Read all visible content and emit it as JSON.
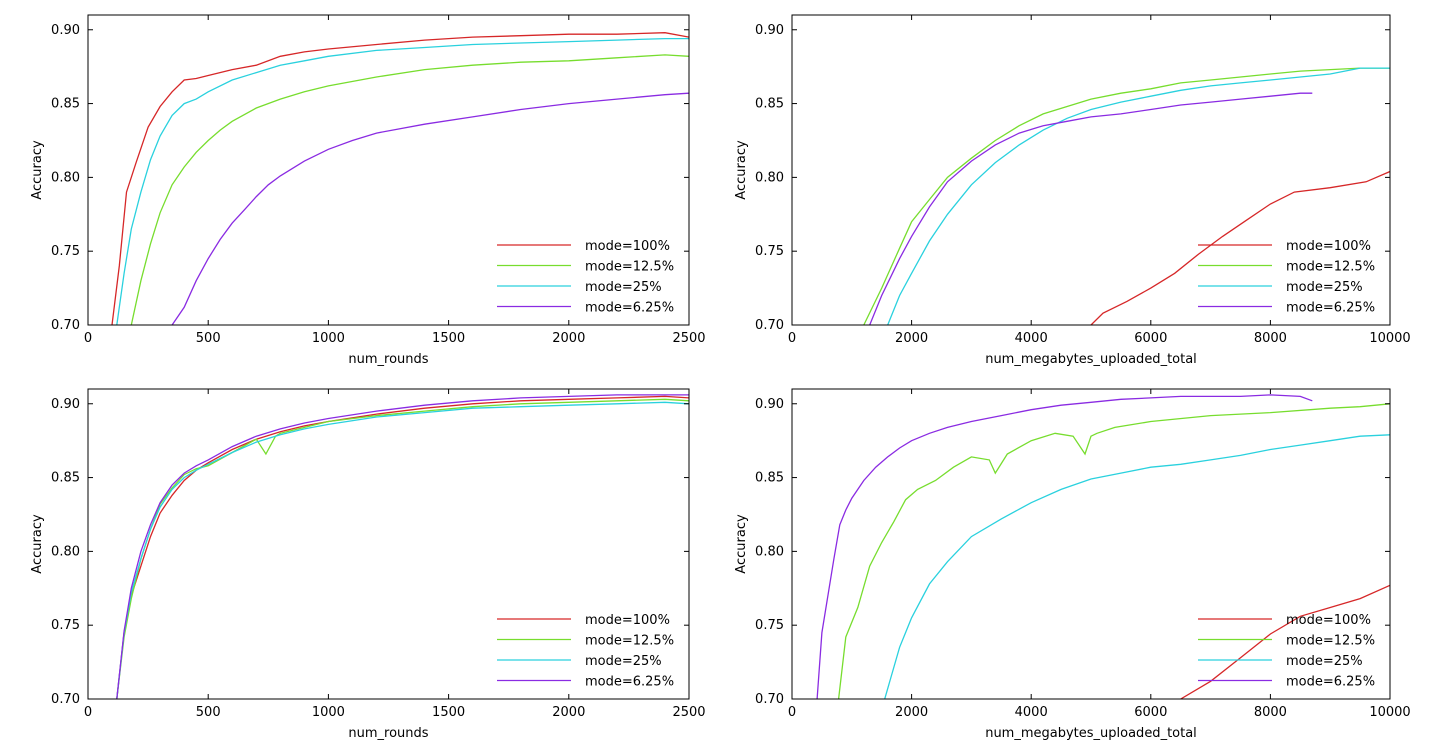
{
  "colors": {
    "mode=100%": "#d62728",
    "mode=12.5%": "#77dd2e",
    "mode=25%": "#2ad1de",
    "mode=6.25%": "#8a2be2"
  },
  "chart_data": [
    {
      "type": "line",
      "xlabel": "num_rounds",
      "ylabel": "Accuracy",
      "xlim": [
        0,
        2500
      ],
      "ylim": [
        0.7,
        0.91
      ],
      "xticks": [
        0,
        500,
        1000,
        1500,
        2000,
        2500
      ],
      "yticks": [
        0.7,
        0.75,
        0.8,
        0.85,
        0.9
      ],
      "legend": "lower-right",
      "grid": false,
      "series": [
        {
          "name": "mode=100%",
          "x": [
            100,
            130,
            160,
            200,
            250,
            300,
            350,
            400,
            450,
            500,
            600,
            700,
            800,
            900,
            1000,
            1200,
            1400,
            1600,
            1800,
            2000,
            2200,
            2400,
            2500
          ],
          "y": [
            0.7,
            0.74,
            0.79,
            0.81,
            0.834,
            0.848,
            0.858,
            0.866,
            0.867,
            0.869,
            0.873,
            0.876,
            0.882,
            0.885,
            0.887,
            0.89,
            0.893,
            0.895,
            0.896,
            0.897,
            0.897,
            0.898,
            0.895
          ]
        },
        {
          "name": "mode=12.5%",
          "x": [
            180,
            220,
            260,
            300,
            350,
            400,
            450,
            500,
            550,
            600,
            700,
            800,
            900,
            1000,
            1200,
            1400,
            1600,
            1800,
            2000,
            2200,
            2400,
            2500
          ],
          "y": [
            0.7,
            0.73,
            0.755,
            0.776,
            0.795,
            0.807,
            0.817,
            0.825,
            0.832,
            0.838,
            0.847,
            0.853,
            0.858,
            0.862,
            0.868,
            0.873,
            0.876,
            0.878,
            0.879,
            0.881,
            0.883,
            0.882
          ]
        },
        {
          "name": "mode=25%",
          "x": [
            120,
            150,
            180,
            220,
            260,
            300,
            350,
            400,
            450,
            500,
            600,
            700,
            800,
            900,
            1000,
            1200,
            1400,
            1600,
            1800,
            2000,
            2200,
            2400,
            2500
          ],
          "y": [
            0.7,
            0.735,
            0.765,
            0.79,
            0.812,
            0.828,
            0.842,
            0.85,
            0.853,
            0.858,
            0.866,
            0.871,
            0.876,
            0.879,
            0.882,
            0.886,
            0.888,
            0.89,
            0.891,
            0.892,
            0.893,
            0.894,
            0.894
          ]
        },
        {
          "name": "mode=6.25%",
          "x": [
            350,
            400,
            450,
            500,
            550,
            600,
            650,
            700,
            750,
            800,
            900,
            1000,
            1100,
            1200,
            1400,
            1600,
            1800,
            2000,
            2200,
            2400,
            2500
          ],
          "y": [
            0.7,
            0.712,
            0.73,
            0.745,
            0.758,
            0.769,
            0.778,
            0.787,
            0.795,
            0.801,
            0.811,
            0.819,
            0.825,
            0.83,
            0.836,
            0.841,
            0.846,
            0.85,
            0.853,
            0.856,
            0.857
          ]
        }
      ]
    },
    {
      "type": "line",
      "xlabel": "num_megabytes_uploaded_total",
      "ylabel": "Accuracy",
      "xlim": [
        0,
        10000
      ],
      "ylim": [
        0.7,
        0.91
      ],
      "xticks": [
        0,
        2000,
        4000,
        6000,
        8000,
        10000
      ],
      "yticks": [
        0.7,
        0.75,
        0.8,
        0.85,
        0.9
      ],
      "legend": "lower-right",
      "grid": false,
      "series": [
        {
          "name": "mode=100%",
          "x": [
            5000,
            5200,
            5600,
            6000,
            6400,
            6800,
            7200,
            7600,
            8000,
            8400,
            9000,
            9600,
            10000
          ],
          "y": [
            0.7,
            0.708,
            0.716,
            0.725,
            0.735,
            0.748,
            0.76,
            0.771,
            0.782,
            0.79,
            0.793,
            0.797,
            0.804
          ]
        },
        {
          "name": "mode=12.5%",
          "x": [
            1200,
            1500,
            1800,
            2000,
            2300,
            2600,
            3000,
            3400,
            3800,
            4200,
            4600,
            5000,
            5500,
            6000,
            6500,
            7000,
            7500,
            8000,
            8500,
            9000,
            9500,
            10000
          ],
          "y": [
            0.7,
            0.725,
            0.752,
            0.77,
            0.785,
            0.8,
            0.813,
            0.825,
            0.835,
            0.843,
            0.848,
            0.853,
            0.857,
            0.86,
            0.864,
            0.866,
            0.868,
            0.87,
            0.872,
            0.873,
            0.874,
            0.874
          ]
        },
        {
          "name": "mode=25%",
          "x": [
            1600,
            1800,
            2000,
            2300,
            2600,
            3000,
            3400,
            3800,
            4200,
            4600,
            5000,
            5500,
            6000,
            6500,
            7000,
            7500,
            8000,
            8500,
            9000,
            9500,
            10000
          ],
          "y": [
            0.7,
            0.72,
            0.735,
            0.757,
            0.775,
            0.795,
            0.81,
            0.822,
            0.832,
            0.84,
            0.846,
            0.851,
            0.855,
            0.859,
            0.862,
            0.864,
            0.866,
            0.868,
            0.87,
            0.874,
            0.874
          ]
        },
        {
          "name": "mode=6.25%",
          "x": [
            1300,
            1500,
            1800,
            2000,
            2300,
            2600,
            3000,
            3400,
            3800,
            4200,
            4600,
            5000,
            5500,
            6000,
            6500,
            7000,
            7500,
            8000,
            8500,
            8700
          ],
          "y": [
            0.7,
            0.72,
            0.745,
            0.76,
            0.78,
            0.797,
            0.811,
            0.822,
            0.83,
            0.835,
            0.838,
            0.841,
            0.843,
            0.846,
            0.849,
            0.851,
            0.853,
            0.855,
            0.857,
            0.857
          ]
        }
      ]
    },
    {
      "type": "line",
      "xlabel": "num_rounds",
      "ylabel": "Accuracy",
      "xlim": [
        0,
        2500
      ],
      "ylim": [
        0.7,
        0.91
      ],
      "xticks": [
        0,
        500,
        1000,
        1500,
        2000,
        2500
      ],
      "yticks": [
        0.7,
        0.75,
        0.8,
        0.85,
        0.9
      ],
      "legend": "lower-right",
      "grid": false,
      "series": [
        {
          "name": "mode=100%",
          "x": [
            120,
            150,
            180,
            220,
            260,
            300,
            350,
            400,
            450,
            500,
            600,
            700,
            800,
            900,
            1000,
            1200,
            1400,
            1600,
            1800,
            2000,
            2200,
            2400,
            2500
          ],
          "y": [
            0.7,
            0.745,
            0.77,
            0.79,
            0.81,
            0.826,
            0.838,
            0.848,
            0.855,
            0.86,
            0.869,
            0.876,
            0.881,
            0.885,
            0.888,
            0.893,
            0.897,
            0.9,
            0.902,
            0.903,
            0.904,
            0.905,
            0.904
          ]
        },
        {
          "name": "mode=12.5%",
          "x": [
            120,
            150,
            180,
            220,
            260,
            300,
            350,
            400,
            450,
            500,
            600,
            700,
            740,
            780,
            800,
            900,
            1000,
            1200,
            1400,
            1600,
            1800,
            2000,
            2200,
            2400,
            2500
          ],
          "y": [
            0.7,
            0.742,
            0.768,
            0.795,
            0.815,
            0.832,
            0.843,
            0.852,
            0.856,
            0.858,
            0.867,
            0.876,
            0.866,
            0.878,
            0.88,
            0.884,
            0.888,
            0.892,
            0.895,
            0.898,
            0.9,
            0.901,
            0.902,
            0.903,
            0.902
          ]
        },
        {
          "name": "mode=25%",
          "x": [
            120,
            150,
            180,
            220,
            260,
            300,
            350,
            400,
            450,
            500,
            600,
            700,
            800,
            900,
            1000,
            1200,
            1400,
            1600,
            1800,
            2000,
            2200,
            2400,
            2500
          ],
          "y": [
            0.7,
            0.745,
            0.772,
            0.795,
            0.815,
            0.83,
            0.842,
            0.85,
            0.855,
            0.859,
            0.867,
            0.874,
            0.879,
            0.883,
            0.886,
            0.891,
            0.894,
            0.897,
            0.898,
            0.899,
            0.9,
            0.901,
            0.9
          ]
        },
        {
          "name": "mode=6.25%",
          "x": [
            120,
            150,
            180,
            220,
            260,
            300,
            350,
            400,
            450,
            500,
            600,
            700,
            800,
            900,
            1000,
            1200,
            1400,
            1600,
            1800,
            2000,
            2200,
            2400,
            2500
          ],
          "y": [
            0.7,
            0.746,
            0.775,
            0.8,
            0.818,
            0.833,
            0.845,
            0.853,
            0.858,
            0.862,
            0.871,
            0.878,
            0.883,
            0.887,
            0.89,
            0.895,
            0.899,
            0.902,
            0.904,
            0.905,
            0.906,
            0.906,
            0.906
          ]
        }
      ]
    },
    {
      "type": "line",
      "xlabel": "num_megabytes_uploaded_total",
      "ylabel": "Accuracy",
      "xlim": [
        0,
        10000
      ],
      "ylim": [
        0.7,
        0.91
      ],
      "xticks": [
        0,
        2000,
        4000,
        6000,
        8000,
        10000
      ],
      "yticks": [
        0.7,
        0.75,
        0.8,
        0.85,
        0.9
      ],
      "legend": "lower-right",
      "grid": false,
      "series": [
        {
          "name": "mode=100%",
          "x": [
            6500,
            7000,
            7500,
            8000,
            8500,
            9000,
            9500,
            10000
          ],
          "y": [
            0.7,
            0.712,
            0.728,
            0.744,
            0.756,
            0.762,
            0.768,
            0.777
          ]
        },
        {
          "name": "mode=12.5%",
          "x": [
            780,
            900,
            1100,
            1300,
            1500,
            1700,
            1900,
            2100,
            2400,
            2700,
            3000,
            3300,
            3400,
            3600,
            4000,
            4400,
            4700,
            4900,
            5000,
            5100,
            5400,
            6000,
            7000,
            8000,
            9000,
            9500,
            10000
          ],
          "y": [
            0.7,
            0.742,
            0.762,
            0.79,
            0.806,
            0.82,
            0.835,
            0.842,
            0.848,
            0.857,
            0.864,
            0.862,
            0.853,
            0.866,
            0.875,
            0.88,
            0.878,
            0.866,
            0.878,
            0.88,
            0.884,
            0.888,
            0.892,
            0.894,
            0.897,
            0.898,
            0.9
          ]
        },
        {
          "name": "mode=25%",
          "x": [
            1550,
            1800,
            2000,
            2300,
            2600,
            3000,
            3500,
            4000,
            4500,
            5000,
            5500,
            6000,
            6500,
            7000,
            7500,
            8000,
            8500,
            9000,
            9500,
            10000
          ],
          "y": [
            0.7,
            0.735,
            0.755,
            0.778,
            0.793,
            0.81,
            0.822,
            0.833,
            0.842,
            0.849,
            0.853,
            0.857,
            0.859,
            0.862,
            0.865,
            0.869,
            0.872,
            0.875,
            0.878,
            0.879
          ]
        },
        {
          "name": "mode=6.25%",
          "x": [
            420,
            500,
            600,
            700,
            800,
            900,
            1000,
            1100,
            1200,
            1400,
            1600,
            1800,
            2000,
            2300,
            2600,
            3000,
            3500,
            4000,
            4500,
            5000,
            5500,
            6000,
            6500,
            7000,
            7500,
            8000,
            8500,
            8700
          ],
          "y": [
            0.7,
            0.745,
            0.77,
            0.795,
            0.818,
            0.828,
            0.836,
            0.842,
            0.848,
            0.857,
            0.864,
            0.87,
            0.875,
            0.88,
            0.884,
            0.888,
            0.892,
            0.896,
            0.899,
            0.901,
            0.903,
            0.904,
            0.905,
            0.905,
            0.905,
            0.906,
            0.905,
            0.902
          ]
        }
      ]
    }
  ]
}
